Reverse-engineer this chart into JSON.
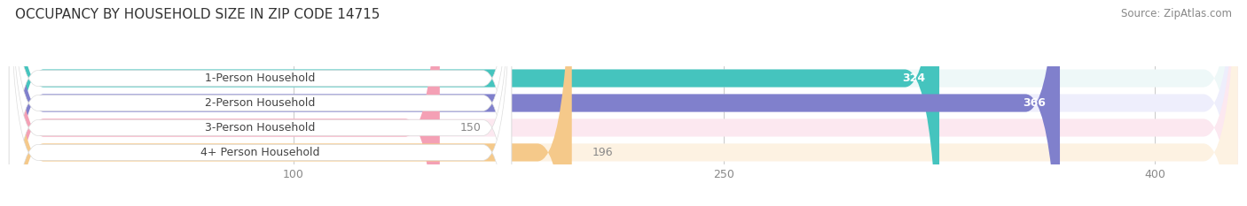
{
  "title": "OCCUPANCY BY HOUSEHOLD SIZE IN ZIP CODE 14715",
  "source": "Source: ZipAtlas.com",
  "categories": [
    "1-Person Household",
    "2-Person Household",
    "3-Person Household",
    "4+ Person Household"
  ],
  "values": [
    324,
    366,
    150,
    196
  ],
  "bar_colors": [
    "#45C4BE",
    "#8080CC",
    "#F4A0B5",
    "#F5C98A"
  ],
  "bar_bg_colors": [
    "#EEF8F8",
    "#EEEEFC",
    "#FCE8F0",
    "#FDF2E2"
  ],
  "label_colors": [
    "#ffffff",
    "#ffffff",
    "#888888",
    "#888888"
  ],
  "xlim": [
    0,
    430
  ],
  "data_max": 400,
  "xticks": [
    100,
    250,
    400
  ],
  "title_fontsize": 11,
  "source_fontsize": 8.5,
  "bar_label_fontsize": 9,
  "cat_label_fontsize": 9,
  "figsize": [
    14.06,
    2.33
  ],
  "dpi": 100,
  "bg_color": "#ffffff"
}
